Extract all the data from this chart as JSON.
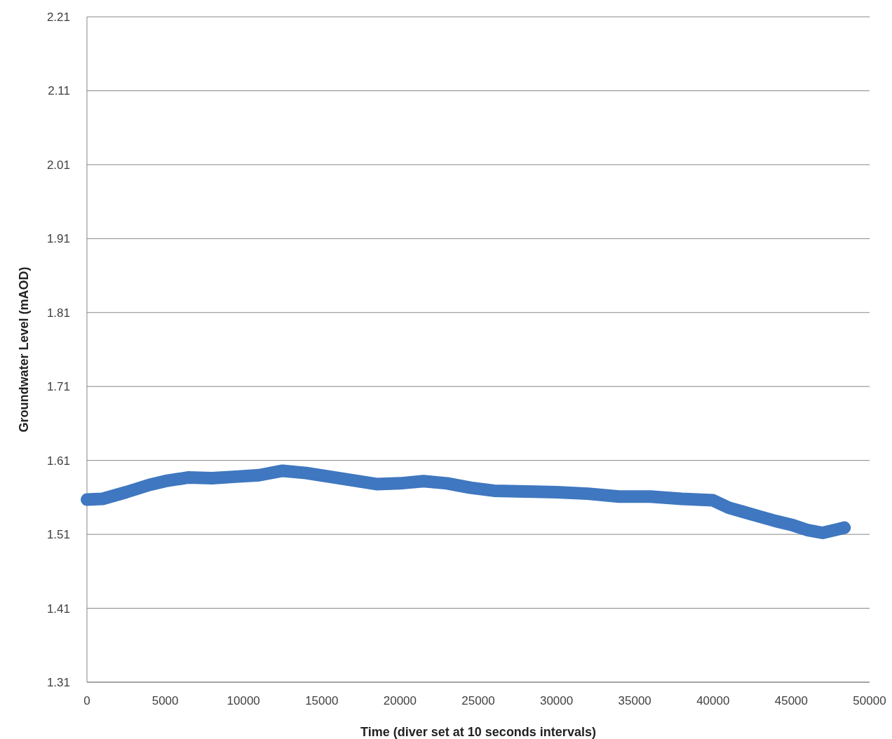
{
  "chart_data": {
    "type": "line",
    "xlabel": "Time (diver set at 10 seconds intervals)",
    "ylabel": "Groundwater Level (mAOD)",
    "xlim": [
      0,
      50000
    ],
    "xticks": [
      0,
      5000,
      10000,
      15000,
      20000,
      25000,
      30000,
      35000,
      40000,
      45000,
      50000
    ],
    "ylim": [
      1.31,
      2.21
    ],
    "yticks": [
      1.31,
      1.41,
      1.51,
      1.61,
      1.71,
      1.81,
      1.91,
      2.01,
      2.11,
      2.21
    ],
    "grid": "y",
    "line_style": "solid",
    "series": [
      {
        "color": "#3f77c0",
        "x": [
          0,
          1000,
          2500,
          4000,
          5000,
          6500,
          8000,
          9500,
          11000,
          12500,
          14000,
          15500,
          17000,
          18500,
          20000,
          21500,
          23000,
          24500,
          26000,
          28000,
          30000,
          32000,
          34000,
          36000,
          38000,
          40000,
          41000,
          42000,
          43000,
          44000,
          45000,
          46000,
          47000,
          48000,
          48400
        ],
        "values": [
          1.557,
          1.558,
          1.567,
          1.577,
          1.582,
          1.587,
          1.586,
          1.588,
          1.59,
          1.596,
          1.593,
          1.588,
          1.583,
          1.578,
          1.579,
          1.582,
          1.579,
          1.573,
          1.569,
          1.568,
          1.567,
          1.565,
          1.561,
          1.561,
          1.558,
          1.556,
          1.546,
          1.54,
          1.534,
          1.528,
          1.523,
          1.516,
          1.512,
          1.517,
          1.519
        ]
      }
    ]
  }
}
